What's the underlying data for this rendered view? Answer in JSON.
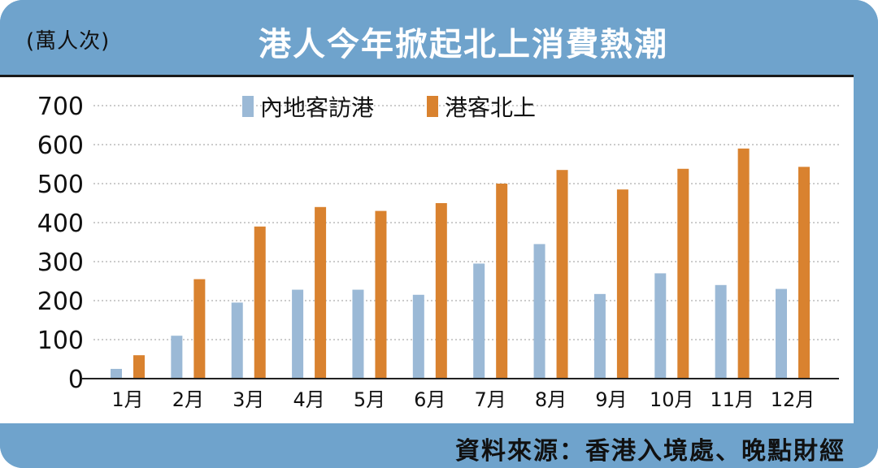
{
  "header": {
    "unit": "(萬人次)",
    "title": "港人今年掀起北上消費熱潮"
  },
  "footer": {
    "source": "資料來源：香港入境處、晚點財經"
  },
  "colors": {
    "frame": "#6fa3cc",
    "series_mainland": "#9bb9d6",
    "series_hk": "#d9822f",
    "grid": "#9a9a9a"
  },
  "chart_data": {
    "type": "bar",
    "categories": [
      "1月",
      "2月",
      "3月",
      "4月",
      "5月",
      "6月",
      "7月",
      "8月",
      "9月",
      "10月",
      "11月",
      "12月"
    ],
    "series": [
      {
        "name": "內地客訪港",
        "values": [
          25,
          110,
          195,
          228,
          228,
          215,
          295,
          345,
          217,
          270,
          240,
          230
        ]
      },
      {
        "name": "港客北上",
        "values": [
          60,
          255,
          390,
          440,
          430,
          450,
          500,
          535,
          485,
          538,
          590,
          543
        ]
      }
    ],
    "yticks": [
      0,
      100,
      200,
      300,
      400,
      500,
      600,
      700
    ],
    "ylim": [
      0,
      700
    ],
    "grid": true,
    "legend_position": "top"
  }
}
